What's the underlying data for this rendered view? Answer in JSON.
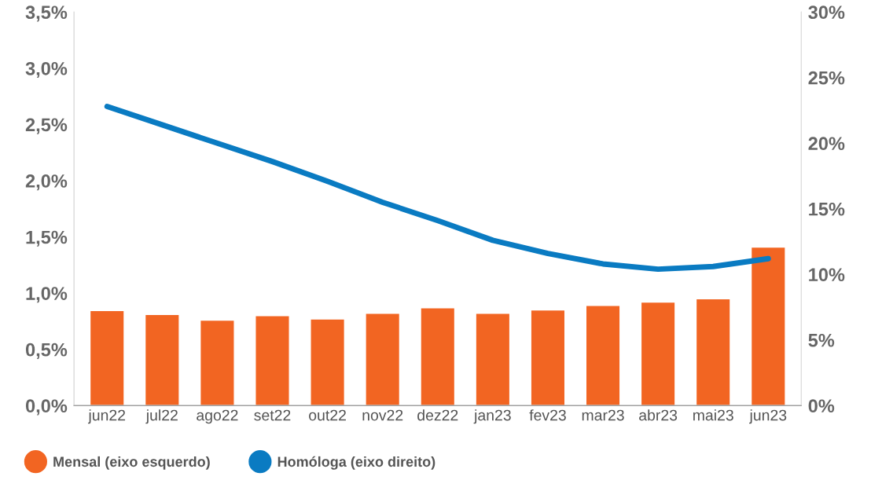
{
  "chart_data": {
    "type": "bar",
    "categories": [
      "jun22",
      "jul22",
      "ago22",
      "set22",
      "out22",
      "nov22",
      "dez22",
      "jan23",
      "fev23",
      "mar23",
      "abr23",
      "mai23",
      "jun23"
    ],
    "series": [
      {
        "name": "Mensal (eixo esquerdo)",
        "type": "bar",
        "color": "#f26522",
        "values": [
          0.845,
          0.81,
          0.76,
          0.8,
          0.77,
          0.82,
          0.87,
          0.82,
          0.85,
          0.89,
          0.92,
          0.95,
          1.41
        ]
      },
      {
        "name": "Homóloga (eixo direito)",
        "type": "line",
        "axis": "y2",
        "color": "#0a7bc2",
        "values": [
          22.8,
          21.4,
          20.0,
          18.6,
          17.1,
          15.5,
          14.1,
          12.6,
          11.6,
          10.8,
          10.4,
          10.6,
          11.2
        ]
      }
    ],
    "ylim": [
      0,
      3.5
    ],
    "yticks": [
      {
        "value": 0,
        "label": "0,0%"
      },
      {
        "value": 0.5,
        "label": "0,5%"
      },
      {
        "value": 1,
        "label": "1,0%"
      },
      {
        "value": 1.5,
        "label": "1,5%"
      },
      {
        "value": 2,
        "label": "2,0%"
      },
      {
        "value": 2.5,
        "label": "2,5%"
      },
      {
        "value": 3,
        "label": "3,0%"
      },
      {
        "value": 3.5,
        "label": "3,5%"
      }
    ],
    "y2lim": [
      0,
      30
    ],
    "y2ticks": [
      {
        "value": 0,
        "label": "0%"
      },
      {
        "value": 5,
        "label": "5%"
      },
      {
        "value": 10,
        "label": "10%"
      },
      {
        "value": 15,
        "label": "15%"
      },
      {
        "value": 20,
        "label": "20%"
      },
      {
        "value": 25,
        "label": "25%"
      },
      {
        "value": 30,
        "label": "30%"
      }
    ],
    "grid": false,
    "legend": "bottom left",
    "marker": "none",
    "line_style": "solid"
  }
}
